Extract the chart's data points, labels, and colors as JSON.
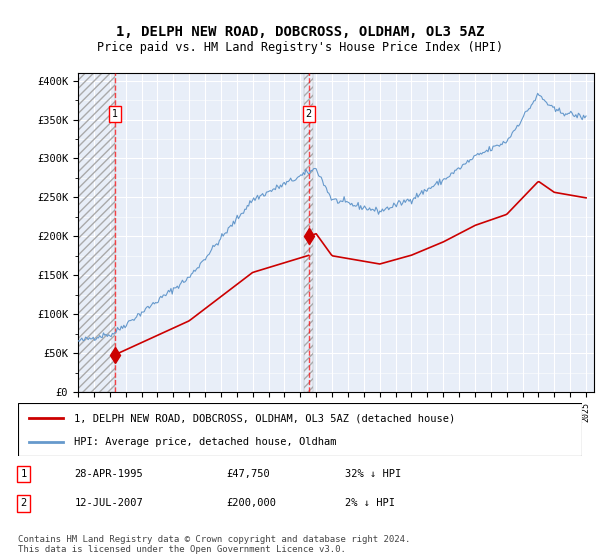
{
  "title": "1, DELPH NEW ROAD, DOBCROSS, OLDHAM, OL3 5AZ",
  "subtitle": "Price paid vs. HM Land Registry's House Price Index (HPI)",
  "legend_label_red": "1, DELPH NEW ROAD, DOBCROSS, OLDHAM, OL3 5AZ (detached house)",
  "legend_label_blue": "HPI: Average price, detached house, Oldham",
  "sale1_date": "28-APR-1995",
  "sale1_price": 47750,
  "sale1_pct": "32% ↓ HPI",
  "sale2_date": "12-JUL-2007",
  "sale2_price": 200000,
  "sale2_pct": "2% ↓ HPI",
  "footer": "Contains HM Land Registry data © Crown copyright and database right 2024.\nThis data is licensed under the Open Government Licence v3.0.",
  "ylim": [
    0,
    410000
  ],
  "xlim_start": 1993.0,
  "xlim_end": 2025.5,
  "sale1_year": 1995.32,
  "sale2_year": 2007.53,
  "background_hatch_color": "#d8d8e8",
  "background_plot_color": "#e8eef8",
  "grid_color": "#ffffff",
  "red_line_color": "#cc0000",
  "blue_line_color": "#6699cc"
}
